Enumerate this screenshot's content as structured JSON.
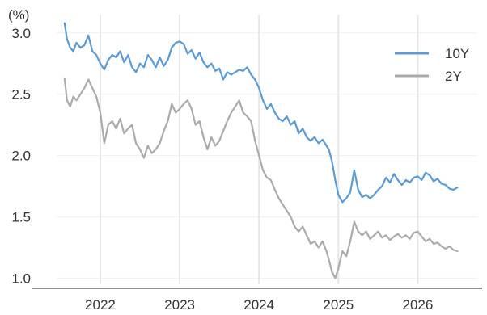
{
  "chart_data": {
    "type": "line",
    "unit_label": "(%)",
    "x_ticks": [
      "2022",
      "2023",
      "2024",
      "2025",
      "2026"
    ],
    "y_ticks": [
      "1.0",
      "1.5",
      "2.0",
      "2.5",
      "3.0"
    ],
    "ylim": [
      0.95,
      3.15
    ],
    "xlim": [
      2021.45,
      2026.75
    ],
    "grid": {
      "vertical": true,
      "horizontal": true
    },
    "legend_position": "top-right",
    "series": [
      {
        "name": "10Y",
        "color": "#5b9bd5",
        "x": [
          2021.55,
          2021.58,
          2021.62,
          2021.66,
          2021.7,
          2021.75,
          2021.8,
          2021.85,
          2021.9,
          2021.95,
          2022.0,
          2022.05,
          2022.1,
          2022.15,
          2022.2,
          2022.25,
          2022.3,
          2022.35,
          2022.4,
          2022.45,
          2022.5,
          2022.55,
          2022.6,
          2022.65,
          2022.7,
          2022.75,
          2022.8,
          2022.85,
          2022.9,
          2022.95,
          2023.0,
          2023.05,
          2023.1,
          2023.15,
          2023.2,
          2023.25,
          2023.3,
          2023.35,
          2023.4,
          2023.45,
          2023.5,
          2023.55,
          2023.6,
          2023.65,
          2023.7,
          2023.75,
          2023.8,
          2023.85,
          2023.9,
          2023.95,
          2024.0,
          2024.05,
          2024.1,
          2024.15,
          2024.2,
          2024.25,
          2024.3,
          2024.35,
          2024.4,
          2024.45,
          2024.5,
          2024.55,
          2024.6,
          2024.65,
          2024.7,
          2024.75,
          2024.8,
          2024.85,
          2024.88,
          2024.92,
          2024.96,
          2025.0,
          2025.05,
          2025.1,
          2025.15,
          2025.2,
          2025.25,
          2025.3,
          2025.35,
          2025.4,
          2025.45,
          2025.5,
          2025.55,
          2025.6,
          2025.65,
          2025.7,
          2025.75,
          2025.8,
          2025.85,
          2025.9,
          2025.95,
          2026.0,
          2026.05,
          2026.1,
          2026.15,
          2026.2,
          2026.25,
          2026.3,
          2026.35,
          2026.4,
          2026.45,
          2026.5
        ],
        "values": [
          3.08,
          2.95,
          2.88,
          2.85,
          2.92,
          2.88,
          2.9,
          2.98,
          2.85,
          2.82,
          2.75,
          2.7,
          2.78,
          2.82,
          2.8,
          2.85,
          2.76,
          2.82,
          2.72,
          2.68,
          2.75,
          2.72,
          2.82,
          2.78,
          2.72,
          2.8,
          2.73,
          2.78,
          2.88,
          2.92,
          2.93,
          2.91,
          2.83,
          2.86,
          2.79,
          2.84,
          2.76,
          2.72,
          2.75,
          2.69,
          2.71,
          2.62,
          2.68,
          2.66,
          2.68,
          2.7,
          2.69,
          2.72,
          2.66,
          2.62,
          2.55,
          2.45,
          2.38,
          2.42,
          2.35,
          2.3,
          2.28,
          2.32,
          2.25,
          2.28,
          2.18,
          2.22,
          2.15,
          2.12,
          2.15,
          2.1,
          2.13,
          2.08,
          2.05,
          1.95,
          1.8,
          1.68,
          1.62,
          1.65,
          1.7,
          1.88,
          1.72,
          1.66,
          1.68,
          1.65,
          1.68,
          1.72,
          1.75,
          1.82,
          1.78,
          1.85,
          1.8,
          1.76,
          1.8,
          1.78,
          1.82,
          1.83,
          1.8,
          1.86,
          1.84,
          1.79,
          1.81,
          1.77,
          1.76,
          1.73,
          1.72,
          1.74
        ]
      },
      {
        "name": "2Y",
        "color": "#ababab",
        "x": [
          2021.55,
          2021.58,
          2021.62,
          2021.66,
          2021.7,
          2021.75,
          2021.8,
          2021.85,
          2021.9,
          2021.95,
          2022.0,
          2022.05,
          2022.1,
          2022.15,
          2022.2,
          2022.25,
          2022.3,
          2022.35,
          2022.4,
          2022.45,
          2022.5,
          2022.55,
          2022.6,
          2022.65,
          2022.7,
          2022.75,
          2022.8,
          2022.85,
          2022.9,
          2022.95,
          2023.0,
          2023.05,
          2023.1,
          2023.15,
          2023.2,
          2023.25,
          2023.3,
          2023.35,
          2023.4,
          2023.45,
          2023.5,
          2023.55,
          2023.6,
          2023.65,
          2023.7,
          2023.75,
          2023.8,
          2023.85,
          2023.9,
          2023.95,
          2024.0,
          2024.05,
          2024.1,
          2024.15,
          2024.2,
          2024.25,
          2024.3,
          2024.35,
          2024.4,
          2024.45,
          2024.5,
          2024.55,
          2024.6,
          2024.65,
          2024.7,
          2024.75,
          2024.8,
          2024.85,
          2024.88,
          2024.92,
          2024.96,
          2025.0,
          2025.05,
          2025.1,
          2025.15,
          2025.2,
          2025.25,
          2025.3,
          2025.35,
          2025.4,
          2025.45,
          2025.5,
          2025.55,
          2025.6,
          2025.65,
          2025.7,
          2025.75,
          2025.8,
          2025.85,
          2025.9,
          2025.95,
          2026.0,
          2026.05,
          2026.1,
          2026.15,
          2026.2,
          2026.25,
          2026.3,
          2026.35,
          2026.4,
          2026.45,
          2026.5
        ],
        "values": [
          2.63,
          2.45,
          2.4,
          2.48,
          2.45,
          2.5,
          2.55,
          2.62,
          2.55,
          2.48,
          2.35,
          2.1,
          2.25,
          2.28,
          2.22,
          2.3,
          2.18,
          2.22,
          2.25,
          2.1,
          2.05,
          1.98,
          2.08,
          2.02,
          2.05,
          2.1,
          2.2,
          2.28,
          2.42,
          2.35,
          2.38,
          2.42,
          2.45,
          2.38,
          2.25,
          2.28,
          2.15,
          2.05,
          2.15,
          2.08,
          2.12,
          2.2,
          2.28,
          2.35,
          2.4,
          2.45,
          2.35,
          2.32,
          2.28,
          2.12,
          2.0,
          1.88,
          1.82,
          1.8,
          1.72,
          1.65,
          1.6,
          1.55,
          1.5,
          1.42,
          1.38,
          1.42,
          1.35,
          1.28,
          1.3,
          1.25,
          1.3,
          1.22,
          1.15,
          1.05,
          1.0,
          1.08,
          1.22,
          1.18,
          1.3,
          1.46,
          1.38,
          1.35,
          1.38,
          1.32,
          1.35,
          1.38,
          1.33,
          1.35,
          1.31,
          1.34,
          1.36,
          1.33,
          1.35,
          1.32,
          1.37,
          1.38,
          1.34,
          1.3,
          1.32,
          1.28,
          1.29,
          1.26,
          1.24,
          1.26,
          1.23,
          1.22
        ]
      }
    ]
  }
}
